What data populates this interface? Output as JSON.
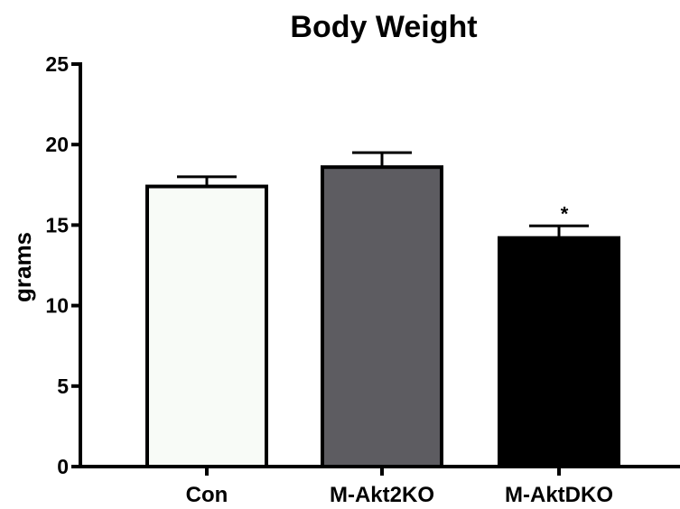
{
  "chart_data": {
    "type": "bar",
    "title": "Body Weight",
    "xlabel": "",
    "ylabel": "grams",
    "ylim": [
      0,
      25
    ],
    "yticks": [
      0,
      5,
      10,
      15,
      20,
      25
    ],
    "categories": [
      "Con",
      "M-Akt2KO",
      "M-AktDKO"
    ],
    "values": [
      17.4,
      18.6,
      14.2
    ],
    "error": [
      0.6,
      0.9,
      0.75
    ],
    "bar_colors": [
      "#f8fbf7",
      "#5d5c61",
      "#000000"
    ],
    "annotations": [
      "",
      "",
      "*"
    ],
    "grid": false,
    "legend": "none"
  }
}
